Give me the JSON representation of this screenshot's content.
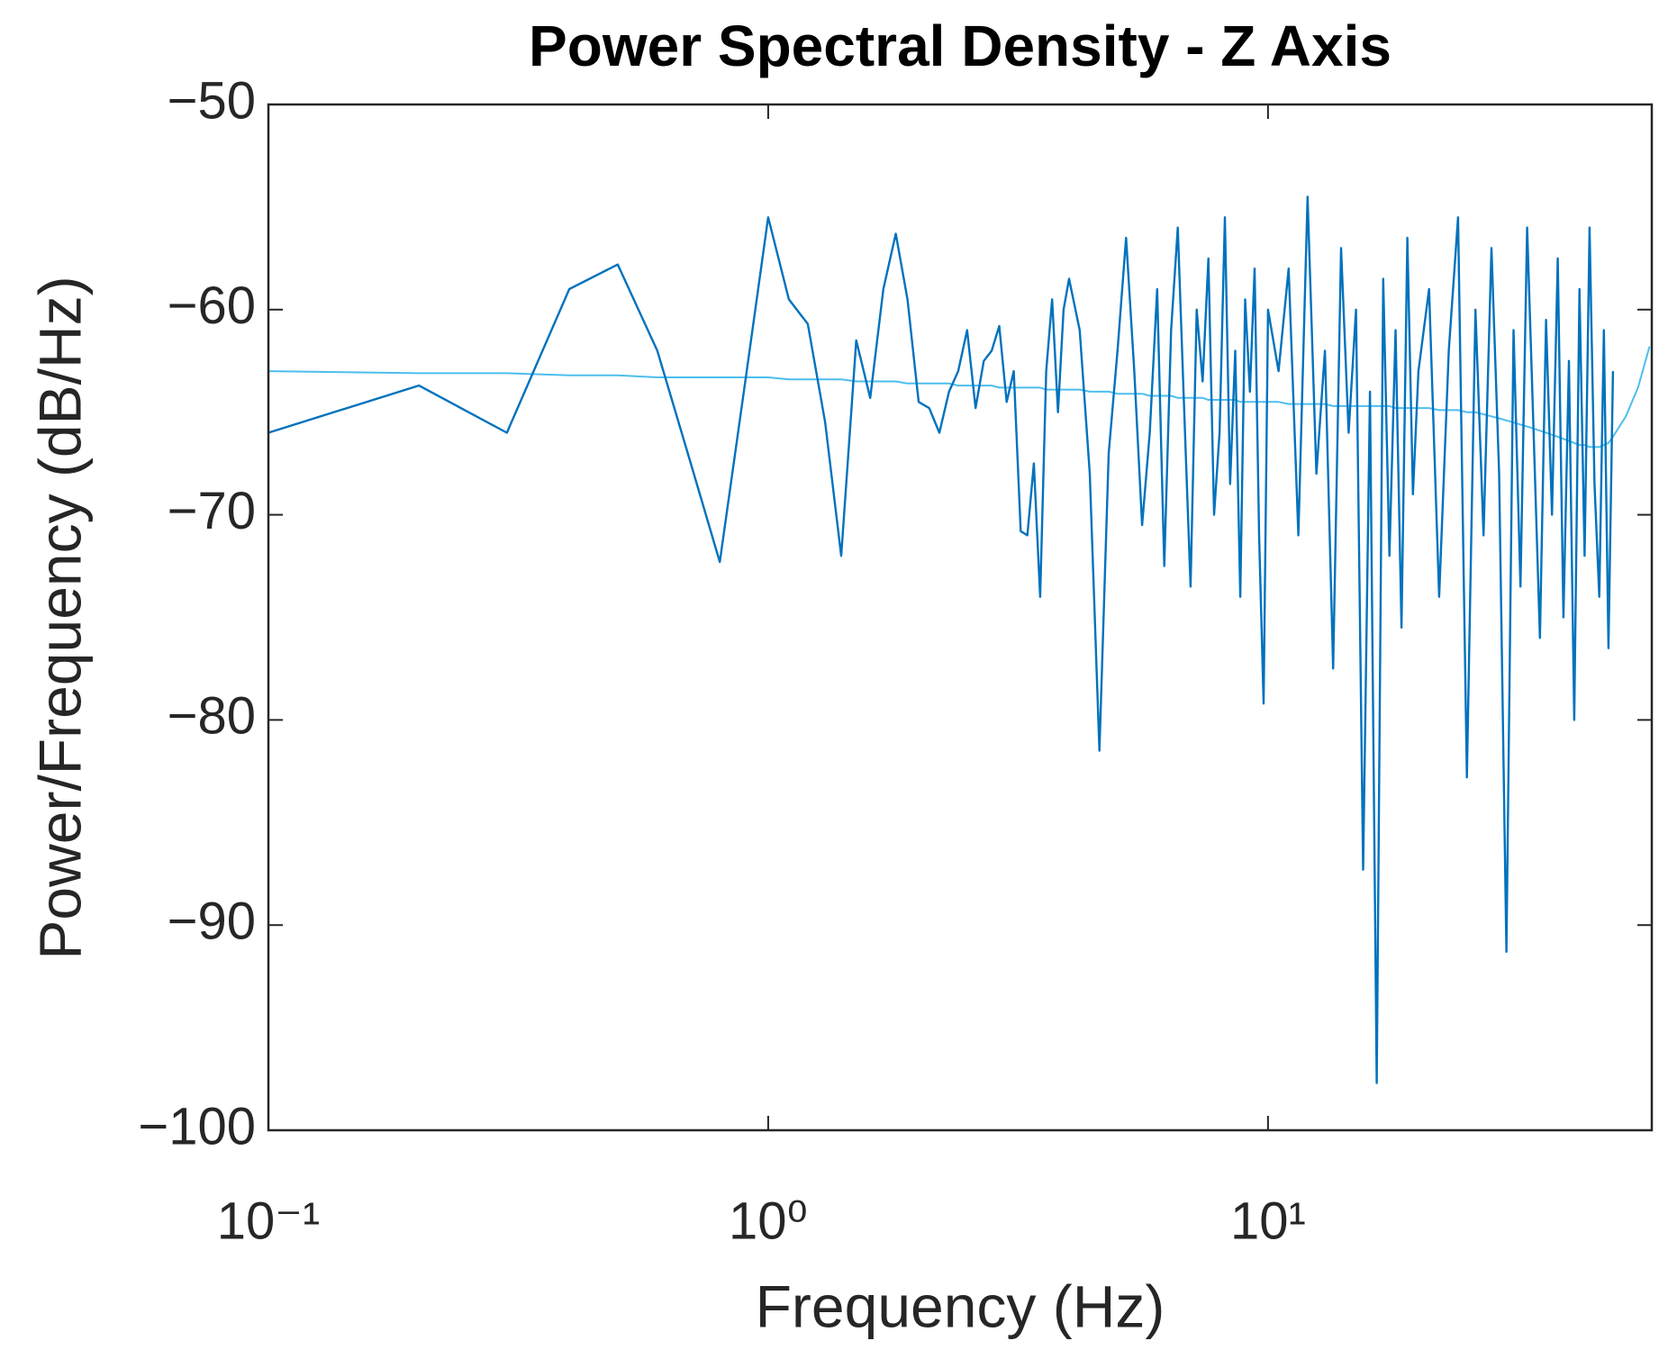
{
  "chart_data": {
    "type": "line",
    "title": "Power Spectral Density - Z Axis",
    "x_label": "Frequency (Hz)",
    "y_label": "Power/Frequency (dB/Hz)",
    "xscale": "log",
    "xlim": [
      0.1,
      58.6
    ],
    "xticks": [
      {
        "value": 0.1,
        "label": "10⁻¹"
      },
      {
        "value": 1,
        "label": "10⁰"
      },
      {
        "value": 10,
        "label": "10¹"
      }
    ],
    "ylim": [
      -100,
      -50
    ],
    "yticks": [
      {
        "value": -100,
        "label": "−100"
      },
      {
        "value": -90,
        "label": "−90"
      },
      {
        "value": -80,
        "label": "−80"
      },
      {
        "value": -70,
        "label": "−70"
      },
      {
        "value": -60,
        "label": "−60"
      },
      {
        "value": -50,
        "label": "−50"
      }
    ],
    "grid": false,
    "x": [
      0.1,
      0.2,
      0.3,
      0.4,
      0.5,
      0.6,
      0.7,
      0.8,
      0.9,
      1.0,
      1.1,
      1.2,
      1.3,
      1.4,
      1.5,
      1.6,
      1.7,
      1.8,
      1.9,
      2.0,
      2.1,
      2.2,
      2.3,
      2.4,
      2.5,
      2.6,
      2.7,
      2.8,
      2.9,
      3.0,
      3.1,
      3.2,
      3.3,
      3.4,
      3.5,
      3.6,
      3.7,
      3.8,
      3.9,
      4.0,
      4.2,
      4.4,
      4.6,
      4.8,
      5.0,
      5.2,
      5.4,
      5.6,
      5.8,
      6.0,
      6.2,
      6.4,
      6.6,
      6.8,
      7.0,
      7.2,
      7.4,
      7.6,
      7.8,
      8.0,
      8.2,
      8.4,
      8.6,
      8.8,
      9.0,
      9.2,
      9.4,
      9.6,
      9.8,
      10.0,
      10.5,
      11,
      11.5,
      12,
      12.5,
      13,
      13.5,
      14,
      14.5,
      15,
      15.5,
      16,
      16.5,
      17,
      17.5,
      18,
      18.5,
      19,
      19.5,
      20,
      21,
      22,
      23,
      24,
      25,
      26,
      27,
      28,
      29,
      30,
      31,
      32,
      33,
      34,
      35,
      36,
      37,
      38,
      39,
      40,
      41,
      42,
      43,
      44,
      45,
      46,
      47,
      48,
      49,
      52,
      55,
      58
    ],
    "series": [
      {
        "color": "#0072BD",
        "width": 2.4,
        "values": [
          -66.0,
          -63.7,
          -66.0,
          -59.0,
          -57.8,
          -62.0,
          -67.5,
          -72.3,
          -63.5,
          -55.5,
          -59.5,
          -60.7,
          -65.5,
          -72.0,
          -61.5,
          -64.3,
          -59.0,
          -56.3,
          -59.5,
          -64.5,
          -64.8,
          -66.0,
          -64.0,
          -63.0,
          -61.0,
          -64.8,
          -62.5,
          -62.0,
          -60.8,
          -64.5,
          -63.0,
          -70.8,
          -71.0,
          -67.5,
          -74.0,
          -63.0,
          -59.5,
          -65.0,
          -60.0,
          -58.5,
          -61.0,
          -68.0,
          -81.5,
          -67.0,
          -62.0,
          -56.5,
          -63.0,
          -70.5,
          -66.0,
          -59.0,
          -72.5,
          -61.0,
          -56.0,
          -65.0,
          -73.5,
          -60.0,
          -63.5,
          -57.5,
          -70.0,
          -66.0,
          -55.5,
          -68.5,
          -62.0,
          -74.0,
          -59.5,
          -64.0,
          -58.0,
          -71.0,
          -79.2,
          -60.0,
          -63.0,
          -58.0,
          -71.0,
          -54.5,
          -68.0,
          -62.0,
          -77.5,
          -57.0,
          -66.0,
          -60.0,
          -87.3,
          -64.0,
          -97.7,
          -58.5,
          -72.0,
          -61.0,
          -75.5,
          -56.5,
          -69.0,
          -63.0,
          -59.0,
          -74.0,
          -62.0,
          -55.5,
          -82.8,
          -60.0,
          -71.0,
          -57.0,
          -68.0,
          -91.3,
          -61.0,
          -73.5,
          -56.0,
          -66.0,
          -76.0,
          -60.5,
          -70.0,
          -57.5,
          -75.0,
          -62.5,
          -80.0,
          -59.0,
          -72.0,
          -56.0,
          -68.5,
          -74.0,
          -61.0,
          -76.5,
          -63.0,
          null,
          null,
          null
        ]
      },
      {
        "color": "#4DBEEE",
        "width": 2,
        "values": [
          -63.0,
          -63.1,
          -63.1,
          -63.2,
          -63.2,
          -63.3,
          -63.3,
          -63.3,
          -63.3,
          -63.3,
          -63.4,
          -63.4,
          -63.4,
          -63.4,
          -63.5,
          -63.5,
          -63.5,
          -63.5,
          -63.6,
          -63.6,
          -63.6,
          -63.6,
          -63.6,
          -63.7,
          -63.7,
          -63.7,
          -63.7,
          -63.7,
          -63.8,
          -63.8,
          -63.8,
          -63.8,
          -63.8,
          -63.8,
          -63.8,
          -63.9,
          -63.9,
          -63.9,
          -63.9,
          -63.9,
          -63.9,
          -64.0,
          -64.0,
          -64.0,
          -64.1,
          -64.1,
          -64.1,
          -64.1,
          -64.2,
          -64.2,
          -64.2,
          -64.2,
          -64.3,
          -64.3,
          -64.3,
          -64.3,
          -64.3,
          -64.4,
          -64.4,
          -64.4,
          -64.4,
          -64.4,
          -64.4,
          -64.5,
          -64.5,
          -64.5,
          -64.5,
          -64.5,
          -64.5,
          -64.5,
          -64.5,
          -64.6,
          -64.6,
          -64.6,
          -64.6,
          -64.6,
          -64.7,
          -64.7,
          -64.7,
          -64.7,
          -64.7,
          -64.7,
          -64.7,
          -64.7,
          -64.7,
          -64.8,
          -64.8,
          -64.8,
          -64.8,
          -64.8,
          -64.8,
          -64.9,
          -64.9,
          -64.9,
          -65.0,
          -65.0,
          -65.1,
          -65.2,
          -65.3,
          -65.4,
          -65.5,
          -65.6,
          -65.7,
          -65.8,
          -65.9,
          -66.0,
          -66.1,
          -66.2,
          -66.3,
          -66.4,
          -66.5,
          -66.6,
          -66.6,
          -66.7,
          -66.7,
          -66.7,
          -66.6,
          -66.5,
          -66.2,
          -65.2,
          -63.8,
          -61.8
        ]
      }
    ]
  }
}
